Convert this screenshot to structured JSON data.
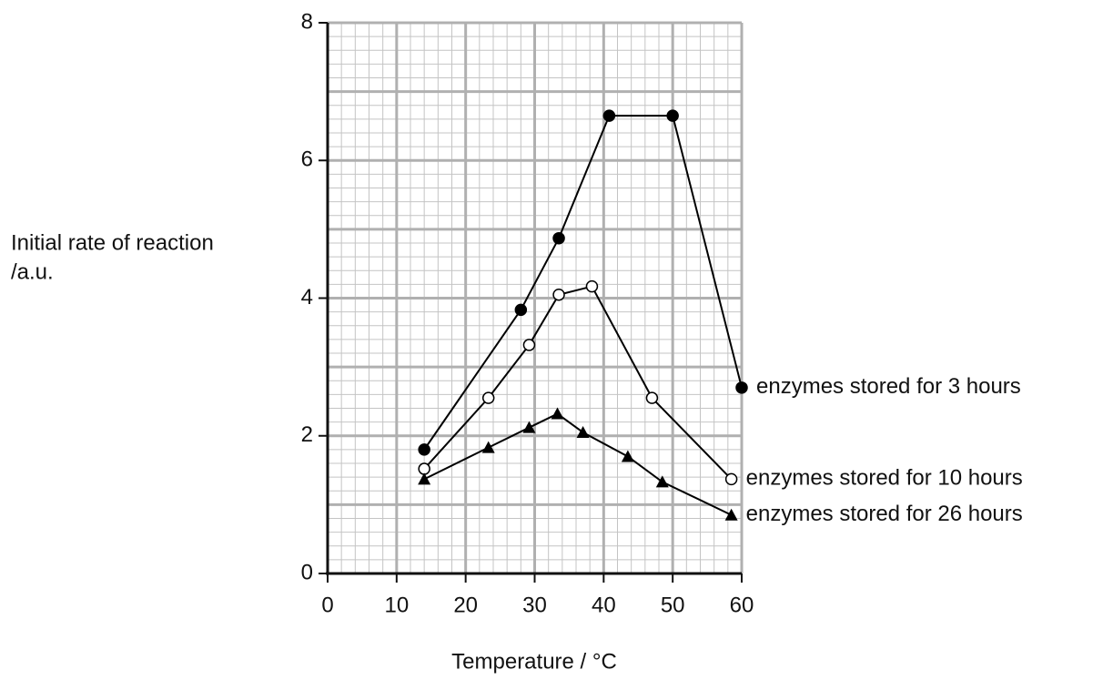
{
  "chart_data": {
    "type": "line",
    "xlabel": "Temperature / °C",
    "ylabel": [
      "Initial rate of reaction",
      "/a.u."
    ],
    "xlim": [
      0,
      60
    ],
    "xticks": [
      0,
      10,
      20,
      30,
      40,
      50,
      60
    ],
    "ylim": [
      0,
      8
    ],
    "yticks": [
      0,
      2,
      4,
      6,
      8
    ],
    "grid": true,
    "series": [
      {
        "name": "enzymes stored for 3 hours",
        "color": "#000000",
        "marker": "circle-filled",
        "x": [
          14,
          28,
          33.5,
          40.8,
          50,
          60
        ],
        "values": [
          1.8,
          3.83,
          4.87,
          6.65,
          6.65,
          2.7
        ]
      },
      {
        "name": "enzymes stored for 10 hours",
        "color": "#000000",
        "marker": "circle-open",
        "x": [
          14,
          23.3,
          29.2,
          33.5,
          38.3,
          47,
          58.5
        ],
        "values": [
          1.52,
          2.55,
          3.32,
          4.05,
          4.17,
          2.55,
          1.37
        ]
      },
      {
        "name": "enzymes stored for 26 hours",
        "color": "#000000",
        "marker": "triangle",
        "x": [
          14,
          23.3,
          29.2,
          33.3,
          37,
          43.5,
          48.5,
          58.5
        ],
        "values": [
          1.37,
          1.83,
          2.12,
          2.32,
          2.05,
          1.7,
          1.33,
          0.85
        ]
      }
    ]
  }
}
